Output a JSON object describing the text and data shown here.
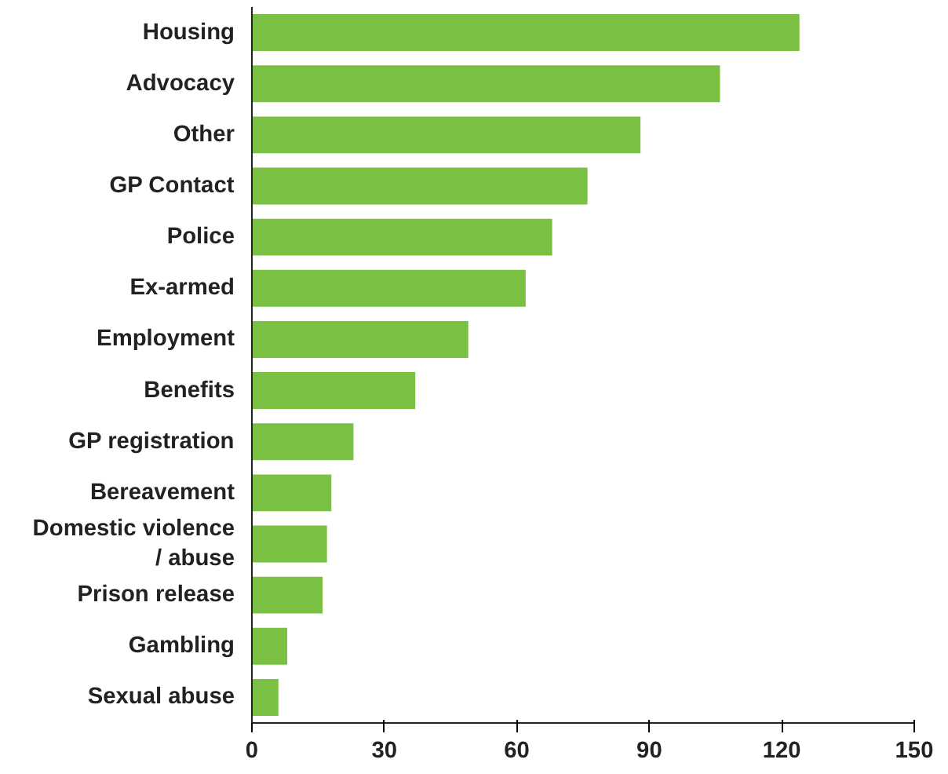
{
  "chart_data": {
    "type": "bar",
    "orientation": "horizontal",
    "categories": [
      "Housing",
      "Advocacy",
      "Other",
      "GP Contact",
      "Police",
      "Ex-armed",
      "Employment",
      "Benefits",
      "GP registration",
      "Bereavement",
      "Domestic violence\n/ abuse",
      "Prison release",
      "Gambling",
      "Sexual abuse"
    ],
    "values": [
      124,
      106,
      88,
      76,
      68,
      62,
      49,
      37,
      23,
      18,
      17,
      16,
      8,
      6
    ],
    "color": "#7ac143",
    "xlim": [
      0,
      150
    ],
    "xticks": [
      0,
      30,
      60,
      90,
      120,
      150
    ],
    "grid": false
  }
}
